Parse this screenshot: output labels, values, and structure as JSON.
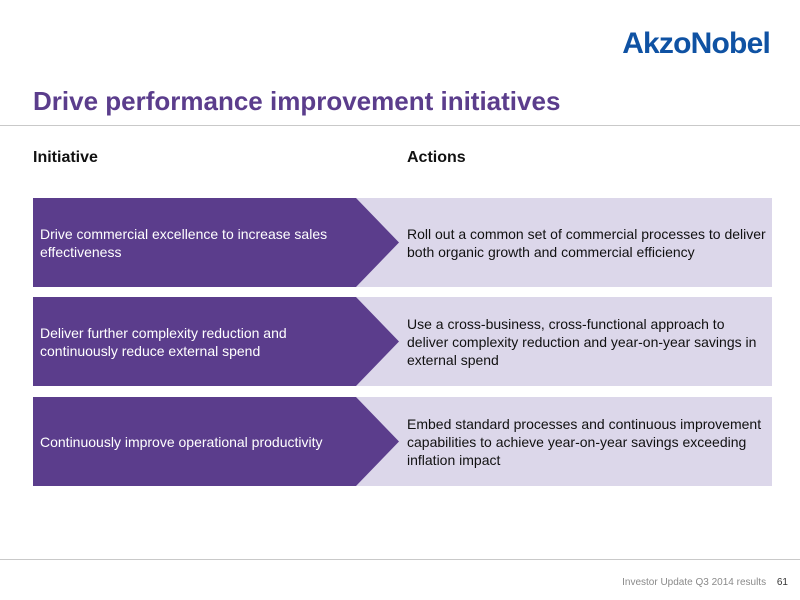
{
  "brand": {
    "logo_text": "AkzoNobel",
    "color": "#0f52a3"
  },
  "title": "Drive performance improvement initiatives",
  "columns": {
    "initiative": "Initiative",
    "actions": "Actions"
  },
  "rows": [
    {
      "initiative": "Drive commercial excellence to increase sales effectiveness",
      "action": "Roll out a common set of commercial processes to deliver both organic growth and commercial efficiency"
    },
    {
      "initiative": "Deliver further complexity reduction and continuously reduce external spend",
      "action": "Use a cross-business, cross-functional approach to deliver complexity reduction and year-on-year savings in external spend"
    },
    {
      "initiative": "Continuously improve operational productivity",
      "action": "Embed standard processes and continuous improvement capabilities to achieve year-on-year savings exceeding inflation impact"
    }
  ],
  "colors": {
    "title": "#5b3d8c",
    "initiative_fill": "#5b3d8c",
    "action_fill": "#dcd7ea"
  },
  "footer": {
    "text": "Investor Update Q3 2014 results",
    "page": "61"
  }
}
